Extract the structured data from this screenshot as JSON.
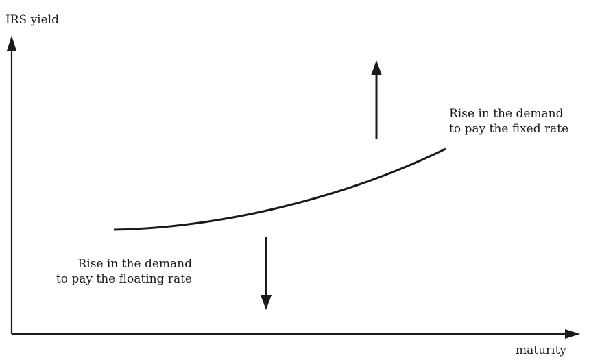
{
  "axes": {
    "y_label": "IRS yield",
    "x_label": "maturity"
  },
  "annotations": {
    "fixed_rate": {
      "line1": "Rise in the demand",
      "line2": "to pay the fixed rate"
    },
    "floating_rate": {
      "line1": "Rise in the demand",
      "line2": "to pay the floating rate"
    }
  },
  "colors": {
    "ink": "#1a1a1a",
    "background": "#ffffff"
  }
}
